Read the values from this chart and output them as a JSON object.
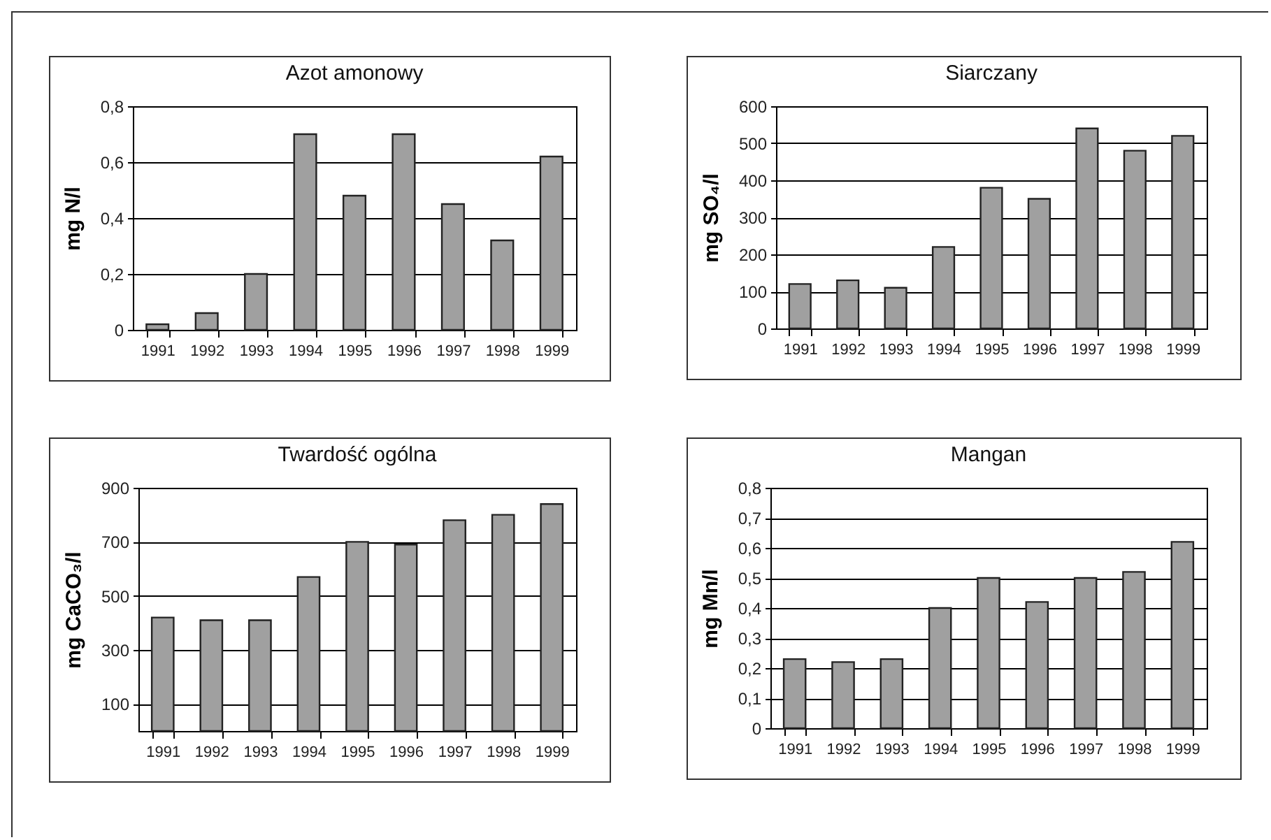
{
  "chart_data": [
    {
      "type": "bar",
      "title": "Azot amonowy",
      "ylabel": "mg N/l",
      "categories": [
        "1991",
        "1992",
        "1993",
        "1994",
        "1995",
        "1996",
        "1997",
        "1998",
        "1999"
      ],
      "values": [
        0.02,
        0.06,
        0.2,
        0.7,
        0.48,
        0.7,
        0.45,
        0.32,
        0.62
      ],
      "color": "#a0a0a0",
      "ylim": [
        0,
        0.8
      ],
      "yticks": [
        0,
        {
          "value": 0.2,
          "label": "0,2"
        },
        {
          "value": 0.4,
          "label": "0,4"
        },
        {
          "value": 0.6,
          "label": "0,6"
        },
        {
          "value": 0.8,
          "label": "0,8"
        }
      ],
      "grid": "y"
    },
    {
      "type": "bar",
      "title": "Siarczany",
      "ylabel": "mg SO₄/l",
      "categories": [
        "1991",
        "1992",
        "1993",
        "1994",
        "1995",
        "1996",
        "1997",
        "1998",
        "1999"
      ],
      "values": [
        120,
        130,
        110,
        220,
        380,
        350,
        540,
        480,
        520
      ],
      "color": "#a0a0a0",
      "ylim": [
        0,
        600
      ],
      "yticks": [
        0,
        100,
        200,
        300,
        400,
        500,
        600
      ],
      "grid": "y"
    },
    {
      "type": "bar",
      "title": "Twardość ogólna",
      "ylabel": "mg CaCO₃/l",
      "categories": [
        "1991",
        "1992",
        "1993",
        "1994",
        "1995",
        "1996",
        "1997",
        "1998",
        "1999"
      ],
      "values": [
        420,
        410,
        410,
        570,
        700,
        690,
        780,
        800,
        840
      ],
      "color": "#a0a0a0",
      "ylim": [
        0,
        900
      ],
      "yticks": [
        100,
        300,
        500,
        700,
        900
      ],
      "grid": "y"
    },
    {
      "type": "bar",
      "title": "Mangan",
      "ylabel": "mg Mn/l",
      "categories": [
        "1991",
        "1992",
        "1993",
        "1994",
        "1995",
        "1996",
        "1997",
        "1998",
        "1999"
      ],
      "values": [
        0.23,
        0.22,
        0.23,
        0.4,
        0.5,
        0.42,
        0.5,
        0.52,
        0.62
      ],
      "color": "#a0a0a0",
      "ylim": [
        0,
        0.8
      ],
      "yticks": [
        0,
        {
          "value": 0.1,
          "label": "0,1"
        },
        {
          "value": 0.2,
          "label": "0,2"
        },
        {
          "value": 0.3,
          "label": "0,3"
        },
        {
          "value": 0.4,
          "label": "0,4"
        },
        {
          "value": 0.5,
          "label": "0,5"
        },
        {
          "value": 0.6,
          "label": "0,6"
        },
        {
          "value": 0.7,
          "label": "0,7"
        },
        {
          "value": 0.8,
          "label": "0,8"
        }
      ],
      "grid": "y"
    }
  ]
}
